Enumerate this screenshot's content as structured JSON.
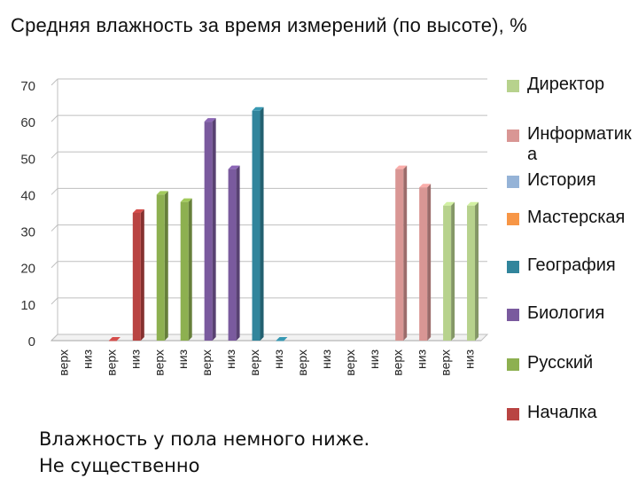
{
  "chart_data": {
    "type": "bar",
    "title": "Средняя влажность за время измерений (по высоте), %",
    "xlabel": "",
    "ylabel": "",
    "ylim": [
      0,
      70
    ],
    "yticks": [
      0,
      10,
      20,
      30,
      40,
      50,
      60,
      70
    ],
    "grid": true,
    "legend_position": "right",
    "categories": [
      "верх",
      "низ",
      "верх",
      "низ",
      "верх",
      "низ",
      "верх",
      "низ",
      "верх",
      "низ",
      "верх",
      "низ",
      "верх",
      "низ",
      "верх",
      "низ",
      "верх",
      "низ"
    ],
    "series": [
      {
        "name": "Директор",
        "color": "#b7d28d",
        "values": [
          null,
          null,
          null,
          null,
          null,
          null,
          null,
          null,
          null,
          null,
          null,
          null,
          null,
          null,
          null,
          null,
          37,
          37
        ]
      },
      {
        "name": "Информатика",
        "color": "#d99694",
        "values": [
          null,
          null,
          null,
          null,
          null,
          null,
          null,
          null,
          null,
          null,
          null,
          null,
          null,
          null,
          47,
          42,
          null,
          null
        ]
      },
      {
        "name": "История",
        "color": "#95b3d7",
        "values": [
          null,
          null,
          null,
          null,
          null,
          null,
          null,
          null,
          null,
          null,
          null,
          null,
          null,
          null,
          null,
          null,
          null,
          null
        ]
      },
      {
        "name": "Мастерская",
        "color": "#f79646",
        "values": [
          null,
          null,
          null,
          null,
          null,
          null,
          null,
          null,
          null,
          null,
          null,
          null,
          null,
          null,
          null,
          null,
          null,
          null
        ]
      },
      {
        "name": "География",
        "color": "#31859c",
        "values": [
          null,
          null,
          null,
          null,
          null,
          null,
          null,
          null,
          63,
          0,
          null,
          null,
          null,
          null,
          null,
          null,
          null,
          null
        ]
      },
      {
        "name": "Биология",
        "color": "#7a5a9e",
        "values": [
          null,
          null,
          null,
          null,
          null,
          null,
          60,
          47,
          null,
          null,
          null,
          null,
          null,
          null,
          null,
          null,
          null,
          null
        ]
      },
      {
        "name": "Русский",
        "color": "#8db050",
        "values": [
          null,
          null,
          null,
          null,
          40,
          38,
          null,
          null,
          null,
          null,
          null,
          null,
          null,
          null,
          null,
          null,
          null,
          null
        ]
      },
      {
        "name": "Началка",
        "color": "#b94442",
        "values": [
          null,
          null,
          0,
          35,
          null,
          null,
          null,
          null,
          null,
          null,
          null,
          null,
          null,
          null,
          null,
          null,
          null,
          null
        ]
      }
    ]
  },
  "note": {
    "line1": "Влажность у пола немного ниже.",
    "line2": "Не существенно"
  }
}
